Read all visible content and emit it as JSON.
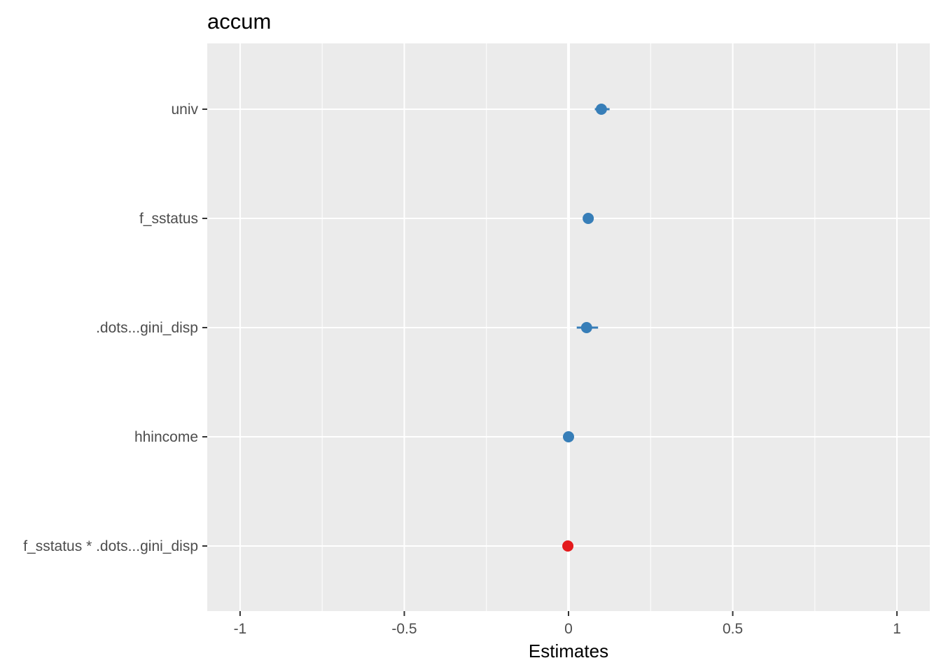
{
  "chart_data": {
    "type": "scatter",
    "title": "accum",
    "xlabel": "Estimates",
    "ylabel": "",
    "xlim": [
      -1.1,
      1.1
    ],
    "x_ticks": [
      -1,
      -0.5,
      0,
      0.5,
      1
    ],
    "x_tick_labels": [
      "-1",
      "-0.5",
      "0",
      "0.5",
      "1"
    ],
    "categories": [
      "univ",
      "f_sstatus",
      ".dots...gini_disp",
      "hhincome",
      "f_sstatus * .dots...gini_disp"
    ],
    "estimates": [
      0.1,
      0.06,
      0.055,
      0.0,
      -0.002
    ],
    "ci_low": [
      0.08,
      0.05,
      0.025,
      -0.005,
      -0.006
    ],
    "ci_high": [
      0.125,
      0.075,
      0.09,
      0.005,
      0.002
    ],
    "colors": [
      "#377eb8",
      "#377eb8",
      "#377eb8",
      "#377eb8",
      "#e41a1c"
    ],
    "grid": true,
    "zero_line": true,
    "panel_background": "#ebebeb",
    "grid_color": "#ffffff"
  }
}
